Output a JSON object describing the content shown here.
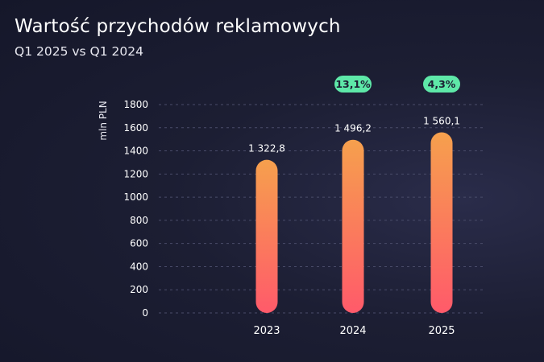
{
  "header": {
    "title": "Wartość przychodów reklamowych",
    "subtitle": "Q1 2025 vs Q1 2024"
  },
  "chart_data": {
    "type": "bar",
    "title": "Wartość przychodów reklamowych",
    "subtitle": "Q1 2025 vs Q1 2024",
    "xlabel": "",
    "ylabel": "mln PLN",
    "categories": [
      "2023",
      "2024",
      "2025"
    ],
    "values": [
      1322.8,
      1496.2,
      1560.1
    ],
    "data_labels": [
      "1 322,8",
      "1 496,2",
      "1 560,1"
    ],
    "growth_badges": [
      {
        "category": "2024",
        "label": "13,1%"
      },
      {
        "category": "2025",
        "label": "4,3%"
      }
    ],
    "ylim": [
      0,
      1800
    ],
    "yticks": [
      0,
      200,
      400,
      600,
      800,
      1000,
      1200,
      1400,
      1600,
      1800
    ],
    "grid": true,
    "colors": {
      "bar_top": "#f6a04d",
      "bar_bottom": "#ff5a6a",
      "badge_bg": "#5ee8a8",
      "badge_text": "#1c1e33",
      "grid": "#4a4c6a"
    }
  }
}
